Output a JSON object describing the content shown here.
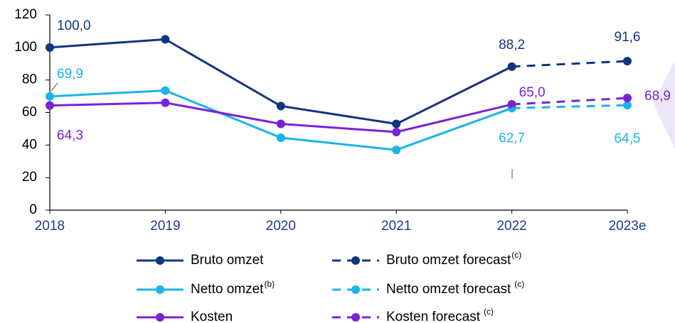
{
  "chart_data": {
    "type": "line",
    "categories": [
      "2018",
      "2019",
      "2020",
      "2021",
      "2022",
      "2023e"
    ],
    "ylim": [
      0,
      120
    ],
    "yticks": [
      0,
      20,
      40,
      60,
      80,
      100,
      120
    ],
    "series": [
      {
        "name": "Bruto omzet",
        "color": "#12357f",
        "dashed": false,
        "values": [
          100.0,
          105,
          64,
          53,
          88.2,
          null
        ],
        "value_labels": [
          "100,0",
          null,
          null,
          null,
          "88,2",
          null
        ]
      },
      {
        "name": "Netto omzet",
        "footnote": "(b)",
        "color": "#1ab4e8",
        "dashed": false,
        "values": [
          69.9,
          73.5,
          44.5,
          37,
          62.7,
          null
        ],
        "value_labels": [
          "69,9",
          null,
          null,
          null,
          "62,7",
          null
        ]
      },
      {
        "name": "Kosten",
        "color": "#7a22d6",
        "dashed": false,
        "values": [
          64.3,
          66,
          53,
          48,
          65.0,
          null
        ],
        "value_labels": [
          "64,3",
          null,
          null,
          null,
          "65,0",
          null
        ]
      },
      {
        "name": "Bruto omzet forecast",
        "footnote": "(c)",
        "color": "#12357f",
        "dashed": true,
        "values": [
          null,
          null,
          null,
          null,
          88.2,
          91.6
        ],
        "value_labels": [
          null,
          null,
          null,
          null,
          null,
          "91,6"
        ]
      },
      {
        "name": "Netto omzet forecast",
        "footnote": "(c)",
        "color": "#1ab4e8",
        "dashed": true,
        "values": [
          null,
          null,
          null,
          null,
          62.7,
          64.5
        ],
        "value_labels": [
          null,
          null,
          null,
          null,
          null,
          "64,5"
        ]
      },
      {
        "name": "Kosten forecast",
        "footnote": "(c)",
        "color": "#7a22d6",
        "dashed": true,
        "values": [
          null,
          null,
          null,
          null,
          65.0,
          68.9
        ],
        "value_labels": [
          null,
          null,
          null,
          null,
          null,
          "68,9"
        ]
      }
    ]
  }
}
